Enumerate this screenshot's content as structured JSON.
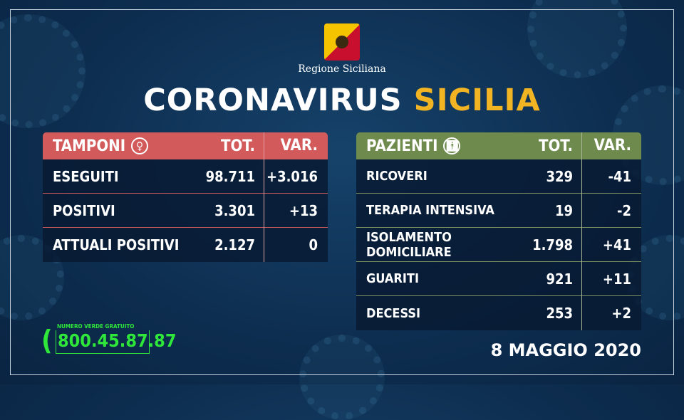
{
  "header": {
    "region": "Regione Siciliana",
    "title_white": "CORONAVIRUS",
    "title_yellow": "SICILIA"
  },
  "colors": {
    "tamponi_header": "#d35a5a",
    "pazienti_header": "#6e8a4d",
    "accent_yellow": "#f2b423",
    "phone_green": "#2fe63a"
  },
  "tamponi": {
    "title": "TAMPONI",
    "icon": "swab-icon",
    "tot": "TOT.",
    "var": "VAR.",
    "rows": [
      {
        "label": "ESEGUITI",
        "tot": "98.711",
        "var": "+3.016"
      },
      {
        "label": "POSITIVI",
        "tot": "3.301",
        "var": "+13"
      },
      {
        "label": "ATTUALI POSITIVI",
        "tot": "2.127",
        "var": "0"
      }
    ]
  },
  "pazienti": {
    "title": "PAZIENTI",
    "icon": "person-icon",
    "tot": "TOT.",
    "var": "VAR.",
    "rows": [
      {
        "label": "RICOVERI",
        "tot": "329",
        "var": "-41"
      },
      {
        "label": "TERAPIA INTENSIVA",
        "tot": "19",
        "var": "-2"
      },
      {
        "label": "ISOLAMENTO DOMICILIARE",
        "tot": "1.798",
        "var": "+41"
      },
      {
        "label": "GUARITI",
        "tot": "921",
        "var": "+11"
      },
      {
        "label": "DECESSI",
        "tot": "253",
        "var": "+2"
      }
    ]
  },
  "phone": {
    "label": "NUMERO VERDE GRATUITO",
    "number": "800.45.87.87"
  },
  "date": "8 MAGGIO 2020"
}
